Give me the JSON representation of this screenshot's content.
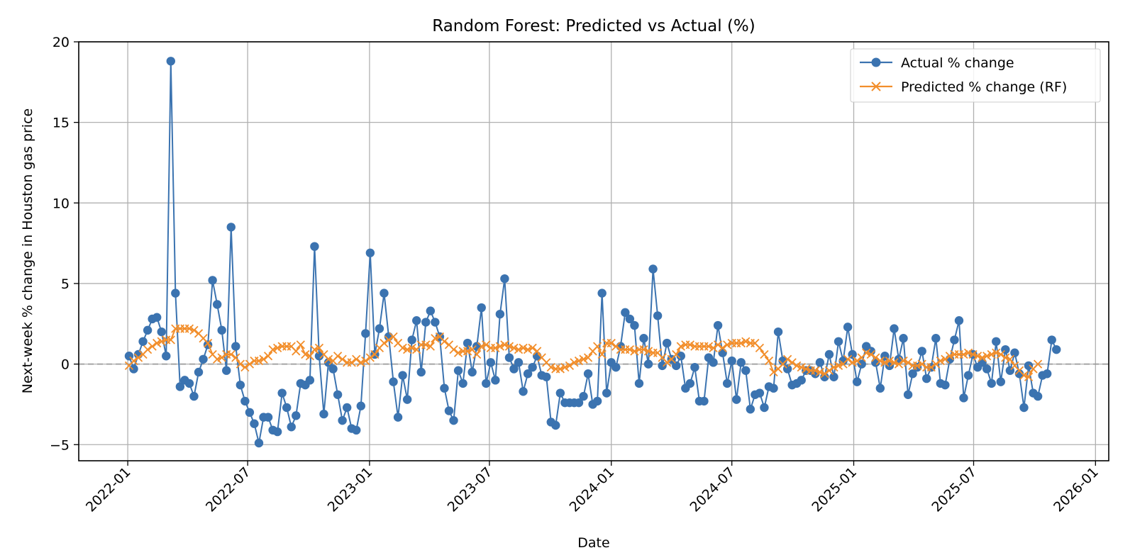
{
  "chart_data": {
    "type": "line",
    "title": "Random Forest: Predicted vs Actual (%)",
    "xlabel": "Date",
    "ylabel": "Next-week % change in Houston gas price",
    "x_axis": {
      "type": "date",
      "range": [
        "2021-10-19",
        "2026-01-21"
      ],
      "ticks": [
        "2022-01-01",
        "2022-07-01",
        "2023-01-01",
        "2023-07-01",
        "2024-01-01",
        "2024-07-01",
        "2025-01-01",
        "2025-07-01",
        "2026-01-01"
      ],
      "tick_labels": [
        "2022-01",
        "2022-07",
        "2023-01",
        "2023-07",
        "2024-01",
        "2024-07",
        "2025-01",
        "2025-07",
        "2026-01"
      ]
    },
    "y_axis": {
      "range": [
        -6.0,
        20.0
      ],
      "ticks": [
        -5,
        0,
        5,
        10,
        15,
        20
      ],
      "tick_labels": [
        "−5",
        "0",
        "5",
        "10",
        "15",
        "20"
      ]
    },
    "grid": true,
    "legend": "top-right",
    "reference_line": {
      "y": 0,
      "style": "dashed",
      "color": "#999999"
    },
    "start_date": "2022-01-03",
    "interval_days": 7,
    "series": [
      {
        "name": "Actual % change",
        "color": "#3b73b0",
        "marker": "circle",
        "values": [
          0.5,
          -0.3,
          0.6,
          1.4,
          2.1,
          2.8,
          2.9,
          2.0,
          0.5,
          18.8,
          4.4,
          -1.4,
          -1.0,
          -1.2,
          -2.0,
          -0.5,
          0.3,
          1.2,
          5.2,
          3.7,
          2.1,
          -0.4,
          8.5,
          1.1,
          -1.3,
          -2.3,
          -3.0,
          -3.7,
          -4.9,
          -3.3,
          -3.3,
          -4.1,
          -4.2,
          -1.8,
          -2.7,
          -3.9,
          -3.2,
          -1.2,
          -1.3,
          -1.0,
          7.3,
          0.5,
          -3.1,
          0.1,
          -0.3,
          -1.9,
          -3.5,
          -2.7,
          -4.0,
          -4.1,
          -2.6,
          1.9,
          6.9,
          0.6,
          2.2,
          4.4,
          1.7,
          -1.1,
          -3.3,
          -0.7,
          -2.2,
          1.5,
          2.7,
          -0.5,
          2.6,
          3.3,
          2.6,
          1.7,
          -1.5,
          -2.9,
          -3.5,
          -0.4,
          -1.2,
          1.3,
          -0.5,
          1.1,
          3.5,
          -1.2,
          0.1,
          -1.0,
          3.1,
          5.3,
          0.4,
          -0.3,
          0.1,
          -1.7,
          -0.6,
          -0.2,
          0.5,
          -0.7,
          -0.8,
          -3.6,
          -3.8,
          -1.8,
          -2.4,
          -2.4,
          -2.4,
          -2.4,
          -2.0,
          -0.6,
          -2.5,
          -2.3,
          4.4,
          -1.8,
          0.1,
          -0.2,
          1.1,
          3.2,
          2.8,
          2.4,
          -1.2,
          1.6,
          0.0,
          5.9,
          3.0,
          -0.1,
          1.3,
          0.3,
          -0.1,
          0.5,
          -1.5,
          -1.2,
          -0.2,
          -2.3,
          -2.3,
          0.4,
          0.1,
          2.4,
          0.7,
          -1.2,
          0.2,
          -2.2,
          0.1,
          -0.4,
          -2.8,
          -1.9,
          -1.8,
          -2.7,
          -1.4,
          -1.5,
          2.0,
          0.2,
          -0.3,
          -1.3,
          -1.2,
          -1.0,
          -0.4,
          -0.4,
          -0.6,
          0.1,
          -0.8,
          0.6,
          -0.8,
          1.4,
          0.2,
          2.3,
          0.6,
          -1.1,
          0.0,
          1.1,
          0.8,
          0.1,
          -1.5,
          0.5,
          -0.1,
          2.2,
          0.3,
          1.6,
          -1.9,
          -0.6,
          -0.2,
          0.8,
          -0.9,
          -0.2,
          1.6,
          -1.2,
          -1.3,
          0.3,
          1.5,
          2.7,
          -2.1,
          -0.7,
          0.6,
          -0.2,
          0.1,
          -0.3,
          -1.2,
          1.4,
          -1.1,
          0.9,
          -0.4,
          0.7,
          -0.6,
          -2.7,
          -0.1,
          -1.8,
          -2.0,
          -0.7,
          -0.6,
          1.5,
          0.9
        ]
      },
      {
        "name": "Predicted % change (RF)",
        "color": "#f28e2b",
        "marker": "x",
        "values": [
          -0.1,
          0.2,
          0.4,
          0.6,
          0.9,
          1.1,
          1.3,
          1.4,
          1.5,
          1.5,
          2.2,
          2.2,
          2.2,
          2.2,
          2.1,
          1.9,
          1.6,
          1.3,
          0.6,
          0.3,
          0.4,
          0.6,
          0.6,
          0.4,
          0.0,
          -0.2,
          0.0,
          0.2,
          0.2,
          0.3,
          0.5,
          0.9,
          1.0,
          1.1,
          1.1,
          1.1,
          0.8,
          1.2,
          0.6,
          0.5,
          0.9,
          1.0,
          0.6,
          0.3,
          0.2,
          0.5,
          0.3,
          0.1,
          0.1,
          0.3,
          0.1,
          0.2,
          0.4,
          0.6,
          1.0,
          1.3,
          1.5,
          1.7,
          1.3,
          1.0,
          0.9,
          1.0,
          0.9,
          1.2,
          1.2,
          1.1,
          1.6,
          1.7,
          1.4,
          1.2,
          0.9,
          0.7,
          0.8,
          0.8,
          0.9,
          0.6,
          1.1,
          1.2,
          1.0,
          1.0,
          1.1,
          1.2,
          1.1,
          1.0,
          0.9,
          1.0,
          0.9,
          1.0,
          0.8,
          0.4,
          0.1,
          -0.2,
          -0.3,
          -0.3,
          -0.2,
          -0.1,
          0.1,
          0.2,
          0.3,
          0.4,
          0.8,
          1.1,
          0.6,
          1.3,
          1.3,
          1.1,
          0.9,
          0.9,
          0.9,
          0.8,
          0.9,
          0.9,
          0.8,
          0.7,
          0.7,
          0.4,
          0.1,
          0.3,
          0.6,
          1.1,
          1.2,
          1.2,
          1.1,
          1.1,
          1.1,
          1.1,
          1.0,
          1.2,
          1.0,
          1.2,
          1.3,
          1.3,
          1.3,
          1.4,
          1.3,
          1.3,
          1.0,
          0.6,
          0.2,
          -0.5,
          -0.3,
          0.0,
          0.3,
          0.1,
          -0.1,
          -0.2,
          -0.3,
          -0.4,
          -0.4,
          -0.5,
          -0.6,
          -0.4,
          -0.2,
          -0.1,
          0.0,
          0.3,
          0.1,
          0.2,
          0.4,
          0.7,
          0.6,
          0.4,
          0.2,
          0.1,
          0.2,
          0.1,
          0.0,
          0.2,
          0.1,
          -0.1,
          -0.1,
          0.0,
          -0.2,
          -0.2,
          0.0,
          0.2,
          0.3,
          0.5,
          0.6,
          0.6,
          0.6,
          0.7,
          0.6,
          0.5,
          0.4,
          0.5,
          0.6,
          0.7,
          0.6,
          0.4,
          0.3,
          -0.1,
          -0.4,
          -0.7,
          -0.8,
          -0.3,
          0.0
        ]
      }
    ]
  }
}
